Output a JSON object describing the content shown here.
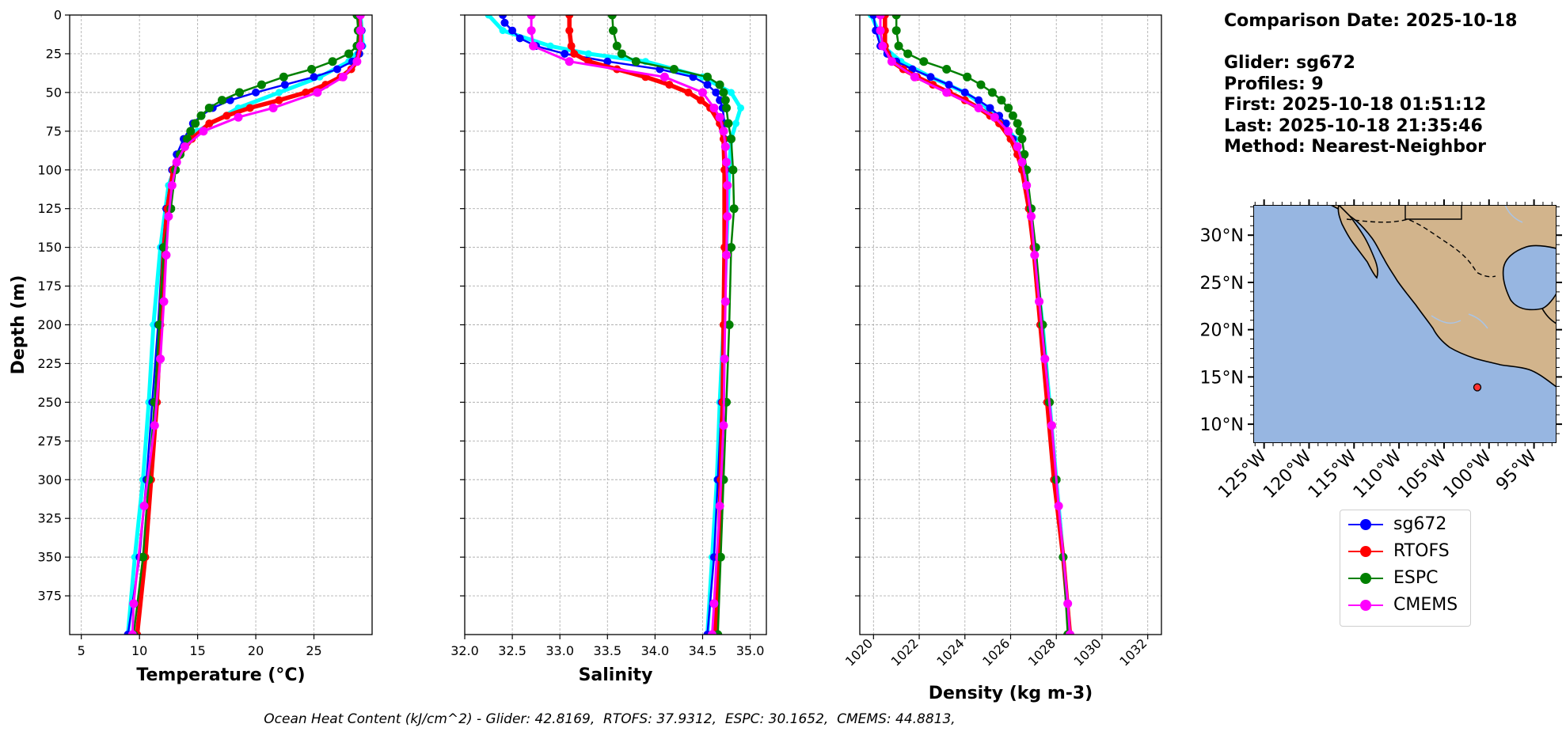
{
  "info": {
    "comparison_date": "Comparison Date: 2025-10-18",
    "glider": "Glider: sg672",
    "profiles": "Profiles: 9",
    "first": "First: 2025-10-18 01:51:12",
    "last": "Last: 2025-10-18 21:35:46",
    "method": "Method: Nearest-Neighbor"
  },
  "footer": "Ocean Heat Content (kJ/cm^2) - Glider: 42.8169,  RTOFS: 37.9312,  ESPC: 30.1652,  CMEMS: 44.8813,",
  "colors": {
    "sg672": "#0000ff",
    "RTOFS": "#ff0000",
    "ESPC": "#008000",
    "CMEMS": "#ff00ff",
    "glider_raw": "#00ffff",
    "ocean": "#97b6e1",
    "land": "#d2b48c",
    "grid": "#b0b0b0"
  },
  "legend": [
    "sg672",
    "RTOFS",
    "ESPC",
    "CMEMS"
  ],
  "map": {
    "lat_labels": [
      "30°N",
      "25°N",
      "20°N",
      "15°N",
      "10°N"
    ],
    "lon_labels": [
      "125°W",
      "120°W",
      "115°W",
      "110°W",
      "105°W",
      "100°W",
      "95°W"
    ],
    "marker": {
      "lon": -101.3,
      "lat": 13.9
    }
  },
  "chart_data": [
    {
      "type": "line",
      "id": "temperature",
      "xlabel": "Temperature (°C)",
      "ylabel": "Depth (m)",
      "xlim": [
        4,
        30
      ],
      "ylim": [
        400,
        0
      ],
      "xticks": [
        5,
        10,
        15,
        20,
        25
      ],
      "xtick_labels": [
        "5",
        "10",
        "15",
        "20",
        "25"
      ],
      "yticks": [
        0,
        25,
        50,
        75,
        100,
        125,
        150,
        175,
        200,
        225,
        250,
        275,
        300,
        325,
        350,
        375
      ],
      "ytick_labels": [
        "0",
        "25",
        "50",
        "75",
        "100",
        "125",
        "150",
        "175",
        "200",
        "225",
        "250",
        "275",
        "300",
        "325",
        "350",
        "375"
      ],
      "series": [
        {
          "name": "glider_raw",
          "depth": [
            0,
            20,
            30,
            40,
            50,
            60,
            75,
            90,
            110,
            150,
            200,
            250,
            300,
            350,
            400
          ],
          "values": [
            29.0,
            29.2,
            28.0,
            25.5,
            22.0,
            18.5,
            15.0,
            13.5,
            12.5,
            11.8,
            11.2,
            10.8,
            10.3,
            9.6,
            9.0
          ]
        },
        {
          "name": "sg672",
          "depth": [
            0,
            10,
            20,
            25,
            30,
            35,
            40,
            45,
            50,
            55,
            60,
            65,
            70,
            80,
            90,
            100,
            125,
            150,
            200,
            250,
            300,
            350,
            400
          ],
          "values": [
            29.0,
            29.1,
            29.1,
            28.9,
            28.3,
            27.0,
            25.0,
            22.5,
            20.0,
            17.8,
            16.3,
            15.3,
            14.6,
            13.8,
            13.2,
            12.8,
            12.3,
            12.0,
            11.6,
            11.1,
            10.6,
            10.0,
            9.0
          ]
        },
        {
          "name": "RTOFS",
          "depth": [
            0,
            10,
            20,
            30,
            35,
            40,
            45,
            50,
            55,
            60,
            65,
            70,
            80,
            90,
            100,
            125,
            150,
            200,
            250,
            300,
            350,
            400
          ],
          "values": [
            28.9,
            29.0,
            29.0,
            28.7,
            28.2,
            27.3,
            26.0,
            24.3,
            22.0,
            19.5,
            17.5,
            16.0,
            14.5,
            13.5,
            12.9,
            12.4,
            12.1,
            11.8,
            11.5,
            11.0,
            10.5,
            9.8
          ]
        },
        {
          "name": "ESPC",
          "depth": [
            0,
            10,
            20,
            25,
            30,
            35,
            40,
            45,
            50,
            55,
            60,
            65,
            70,
            75,
            80,
            90,
            100,
            125,
            150,
            200,
            250,
            300,
            350,
            400
          ],
          "values": [
            28.7,
            28.8,
            28.7,
            28.0,
            26.6,
            24.8,
            22.4,
            20.5,
            18.6,
            17.1,
            16.0,
            15.3,
            14.8,
            14.4,
            14.1,
            13.5,
            13.1,
            12.7,
            12.1,
            11.7,
            11.3,
            10.8,
            10.3,
            9.5
          ]
        },
        {
          "name": "CMEMS",
          "depth": [
            0,
            10,
            20,
            30,
            40,
            50,
            60,
            66,
            75,
            85,
            95,
            110,
            130,
            155,
            185,
            222,
            265,
            317,
            380,
            400
          ],
          "values": [
            29.0,
            29.0,
            29.0,
            28.7,
            27.5,
            25.3,
            21.5,
            18.5,
            15.5,
            13.9,
            13.2,
            12.8,
            12.5,
            12.3,
            12.1,
            11.8,
            11.3,
            10.4,
            9.5,
            9.4
          ]
        }
      ]
    },
    {
      "type": "line",
      "id": "salinity",
      "xlabel": "Salinity",
      "xlim": [
        32.0,
        35.17
      ],
      "ylim": [
        400,
        0
      ],
      "xticks": [
        32.0,
        32.5,
        33.0,
        33.5,
        34.0,
        34.5,
        35.0
      ],
      "xtick_labels": [
        "32.0",
        "32.5",
        "33.0",
        "33.5",
        "34.0",
        "34.5",
        "35.0"
      ],
      "yticks": [
        0,
        25,
        50,
        75,
        100,
        125,
        150,
        175,
        200,
        225,
        250,
        275,
        300,
        325,
        350,
        375
      ],
      "series": [
        {
          "name": "glider_raw",
          "depth": [
            0,
            10,
            20,
            25,
            30,
            40,
            50,
            60,
            70,
            80,
            100,
            150,
            200,
            250,
            300,
            350,
            400
          ],
          "values": [
            32.25,
            32.4,
            32.9,
            33.3,
            33.9,
            34.5,
            34.8,
            34.9,
            34.85,
            34.8,
            34.78,
            34.75,
            34.72,
            34.68,
            34.65,
            34.6,
            34.55
          ]
        },
        {
          "name": "sg672",
          "depth": [
            0,
            5,
            10,
            15,
            20,
            25,
            30,
            35,
            40,
            45,
            50,
            55,
            60,
            70,
            80,
            100,
            150,
            200,
            250,
            300,
            350,
            400
          ],
          "values": [
            32.4,
            32.42,
            32.5,
            32.58,
            32.75,
            33.05,
            33.5,
            34.05,
            34.4,
            34.55,
            34.64,
            34.68,
            34.71,
            34.73,
            34.73,
            34.74,
            34.75,
            34.73,
            34.7,
            34.66,
            34.62,
            34.55
          ]
        },
        {
          "name": "RTOFS",
          "depth": [
            0,
            10,
            20,
            25,
            30,
            35,
            40,
            45,
            50,
            55,
            60,
            70,
            80,
            100,
            150,
            200,
            250,
            300,
            350,
            400
          ],
          "values": [
            33.1,
            33.1,
            33.12,
            33.15,
            33.3,
            33.6,
            33.9,
            34.15,
            34.35,
            34.48,
            34.58,
            34.68,
            34.72,
            34.73,
            34.73,
            34.72,
            34.71,
            34.69,
            34.67,
            34.63
          ]
        },
        {
          "name": "ESPC",
          "depth": [
            0,
            10,
            20,
            25,
            30,
            35,
            40,
            45,
            50,
            55,
            60,
            70,
            80,
            100,
            125,
            150,
            200,
            250,
            300,
            350,
            400
          ],
          "values": [
            33.55,
            33.56,
            33.6,
            33.65,
            33.8,
            34.2,
            34.55,
            34.68,
            34.72,
            34.74,
            34.75,
            34.77,
            34.8,
            34.82,
            34.83,
            34.8,
            34.78,
            34.75,
            34.72,
            34.69,
            34.66
          ]
        },
        {
          "name": "CMEMS",
          "depth": [
            0,
            10,
            20,
            30,
            40,
            50,
            60,
            66,
            75,
            85,
            95,
            110,
            130,
            155,
            185,
            222,
            265,
            317,
            380,
            400
          ],
          "values": [
            32.7,
            32.7,
            32.72,
            33.1,
            34.1,
            34.5,
            34.62,
            34.68,
            34.72,
            34.74,
            34.75,
            34.76,
            34.76,
            34.75,
            34.74,
            34.73,
            34.72,
            34.68,
            34.62,
            34.6
          ]
        }
      ]
    },
    {
      "type": "line",
      "id": "density",
      "xlabel": "Density (kg m-3)",
      "xlim": [
        1019.4,
        1032.6
      ],
      "ylim": [
        400,
        0
      ],
      "xticks": [
        1020,
        1022,
        1024,
        1026,
        1028,
        1030,
        1032
      ],
      "xtick_labels": [
        "1020",
        "1022",
        "1024",
        "1026",
        "1028",
        "1030",
        "1032"
      ],
      "yticks": [
        0,
        25,
        50,
        75,
        100,
        125,
        150,
        175,
        200,
        225,
        250,
        275,
        300,
        325,
        350,
        375
      ],
      "series": [
        {
          "name": "glider_raw",
          "depth": [
            0,
            10,
            20,
            30,
            40,
            50,
            60,
            70,
            80,
            100,
            150,
            200,
            250,
            300,
            350,
            400
          ],
          "values": [
            1019.9,
            1020.2,
            1020.4,
            1021.2,
            1022.5,
            1024.0,
            1025.0,
            1025.7,
            1026.2,
            1026.6,
            1027.0,
            1027.4,
            1027.7,
            1028.0,
            1028.3,
            1028.6
          ]
        },
        {
          "name": "sg672",
          "depth": [
            0,
            10,
            20,
            25,
            30,
            35,
            40,
            45,
            50,
            55,
            60,
            65,
            70,
            80,
            90,
            100,
            125,
            150,
            200,
            250,
            300,
            350,
            400
          ],
          "values": [
            1020.0,
            1020.1,
            1020.3,
            1020.6,
            1021.0,
            1021.7,
            1022.5,
            1023.3,
            1024.0,
            1024.6,
            1025.1,
            1025.5,
            1025.8,
            1026.1,
            1026.3,
            1026.5,
            1026.8,
            1027.0,
            1027.3,
            1027.6,
            1027.9,
            1028.3,
            1028.6
          ]
        },
        {
          "name": "RTOFS",
          "depth": [
            0,
            10,
            20,
            30,
            35,
            40,
            45,
            50,
            55,
            60,
            65,
            70,
            80,
            90,
            100,
            125,
            150,
            200,
            250,
            300,
            350,
            400
          ],
          "values": [
            1020.5,
            1020.5,
            1020.5,
            1020.8,
            1021.3,
            1021.9,
            1022.6,
            1023.3,
            1024.0,
            1024.6,
            1025.1,
            1025.5,
            1026.0,
            1026.3,
            1026.5,
            1026.8,
            1027.0,
            1027.3,
            1027.6,
            1027.9,
            1028.3,
            1028.6
          ]
        },
        {
          "name": "ESPC",
          "depth": [
            0,
            10,
            20,
            25,
            30,
            35,
            40,
            45,
            50,
            55,
            60,
            65,
            70,
            75,
            80,
            90,
            100,
            125,
            150,
            200,
            250,
            300,
            350,
            400
          ],
          "values": [
            1021.0,
            1021.0,
            1021.1,
            1021.5,
            1022.2,
            1023.2,
            1024.1,
            1024.7,
            1025.2,
            1025.6,
            1025.9,
            1026.1,
            1026.3,
            1026.4,
            1026.5,
            1026.6,
            1026.7,
            1026.9,
            1027.1,
            1027.4,
            1027.7,
            1028.0,
            1028.3,
            1028.5
          ]
        },
        {
          "name": "CMEMS",
          "depth": [
            0,
            10,
            20,
            30,
            40,
            50,
            60,
            66,
            75,
            85,
            95,
            110,
            130,
            155,
            185,
            222,
            265,
            317,
            380,
            400
          ],
          "values": [
            1020.3,
            1020.3,
            1020.4,
            1020.8,
            1021.8,
            1023.2,
            1024.6,
            1025.3,
            1025.9,
            1026.3,
            1026.5,
            1026.7,
            1026.9,
            1027.05,
            1027.25,
            1027.5,
            1027.8,
            1028.1,
            1028.5,
            1028.6
          ]
        }
      ]
    }
  ]
}
